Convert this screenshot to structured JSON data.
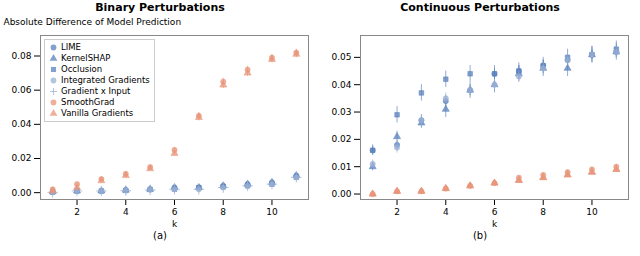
{
  "chart_data": [
    {
      "type": "scatter",
      "title": "Binary Perturbations",
      "x_label": "k",
      "y_label": "Absolute Difference of Model Prediction",
      "caption": "(a)",
      "x": [
        1,
        2,
        3,
        4,
        5,
        6,
        7,
        8,
        9,
        10,
        11
      ],
      "xlim": [
        0.5,
        11.5
      ],
      "xticks": [
        2,
        4,
        6,
        8,
        10
      ],
      "ylim": [
        -0.004,
        0.092
      ],
      "yticks": [
        {
          "value": 0.0,
          "label": "0.00"
        },
        0.02,
        0.04,
        0.06,
        0.08
      ],
      "legend": "upper left",
      "series": [
        {
          "name": "LIME",
          "color": "#5b82be",
          "marker": "circle",
          "values": [
            0.0005,
            0.001,
            0.001,
            0.0015,
            0.002,
            0.003,
            0.003,
            0.004,
            0.005,
            0.006,
            0.01
          ],
          "yerr": [
            0.0003,
            0.0003,
            0.0003,
            0.0003,
            0.0004,
            0.0004,
            0.0004,
            0.0005,
            0.0006,
            0.0007,
            0.001
          ]
        },
        {
          "name": "KernelSHAP",
          "color": "#5b82be",
          "marker": "triangle",
          "values": [
            0.0005,
            0.001,
            0.001,
            0.0015,
            0.002,
            0.003,
            0.003,
            0.004,
            0.005,
            0.006,
            0.01
          ],
          "yerr": [
            0.0003,
            0.0003,
            0.0003,
            0.0003,
            0.0004,
            0.0004,
            0.0004,
            0.0005,
            0.0006,
            0.0007,
            0.001
          ]
        },
        {
          "name": "Occlusion",
          "color": "#5b82be",
          "marker": "square",
          "values": [
            0.0004,
            0.001,
            0.001,
            0.0013,
            0.0018,
            0.002,
            0.003,
            0.0035,
            0.004,
            0.005,
            0.009
          ],
          "yerr": [
            0.0002,
            0.0002,
            0.0002,
            0.0002,
            0.0003,
            0.0003,
            0.0003,
            0.0004,
            0.0005,
            0.0006,
            0.0008
          ]
        },
        {
          "name": "Integrated Gradients",
          "color": "#9ab0d4",
          "marker": "circle",
          "values": [
            0.0003,
            0.001,
            0.001,
            0.0013,
            0.0018,
            0.002,
            0.002,
            0.003,
            0.004,
            0.005,
            0.009
          ],
          "yerr": [
            0.0002,
            0.0002,
            0.0002,
            0.0002,
            0.0003,
            0.0003,
            0.0003,
            0.0004,
            0.0005,
            0.0006,
            0.0008
          ]
        },
        {
          "name": "Gradient x Input",
          "color": "#9ab0d4",
          "marker": "plus",
          "values": [
            0.0002,
            0.001,
            0.001,
            0.0012,
            0.0016,
            0.002,
            0.002,
            0.003,
            0.004,
            0.005,
            0.009
          ],
          "yerr": [
            0.0002,
            0.0002,
            0.0002,
            0.0002,
            0.0002,
            0.0003,
            0.0003,
            0.0004,
            0.0005,
            0.0006,
            0.0008
          ]
        },
        {
          "name": "SmoothGrad",
          "color": "#e8967a",
          "marker": "circle",
          "values": [
            0.002,
            0.005,
            0.008,
            0.011,
            0.015,
            0.025,
            0.045,
            0.065,
            0.072,
            0.079,
            0.082
          ],
          "yerr": [
            0.0004,
            0.0007,
            0.0008,
            0.0009,
            0.001,
            0.0015,
            0.002,
            0.002,
            0.002,
            0.002,
            0.002
          ]
        },
        {
          "name": "Vanilla Gradients",
          "color": "#e8967a",
          "marker": "triangle",
          "values": [
            0.001,
            0.003,
            0.007,
            0.01,
            0.014,
            0.023,
            0.044,
            0.063,
            0.07,
            0.078,
            0.081
          ],
          "yerr": [
            0.0004,
            0.0007,
            0.0008,
            0.001,
            0.001,
            0.0015,
            0.002,
            0.002,
            0.002,
            0.002,
            0.002
          ]
        }
      ]
    },
    {
      "type": "scatter",
      "title": "Continuous Perturbations",
      "x_label": "k",
      "caption": "(b)",
      "x": [
        1,
        2,
        3,
        4,
        5,
        6,
        7,
        8,
        9,
        10,
        11
      ],
      "xlim": [
        0.5,
        11.5
      ],
      "xticks": [
        2,
        4,
        6,
        8,
        10
      ],
      "ylim": [
        -0.002,
        0.058
      ],
      "yticks": [
        {
          "value": 0.0,
          "label": "0.00"
        },
        0.01,
        0.02,
        0.03,
        0.04,
        0.05
      ],
      "series": [
        {
          "name": "LIME",
          "color": "#5b82be",
          "marker": "circle",
          "values": [
            0.016,
            0.018,
            0.027,
            0.034,
            0.038,
            0.044,
            0.045,
            0.047,
            0.049,
            0.051,
            0.052
          ],
          "yerr": [
            0.0015,
            0.0015,
            0.002,
            0.002,
            0.002,
            0.002,
            0.002,
            0.002,
            0.002,
            0.002,
            0.002
          ]
        },
        {
          "name": "KernelSHAP",
          "color": "#5b82be",
          "marker": "triangle",
          "values": [
            0.01,
            0.021,
            0.026,
            0.031,
            0.038,
            0.04,
            0.044,
            0.046,
            0.046,
            0.051,
            0.052
          ],
          "yerr": [
            0.0015,
            0.002,
            0.002,
            0.003,
            0.003,
            0.003,
            0.003,
            0.003,
            0.003,
            0.003,
            0.003
          ]
        },
        {
          "name": "Occlusion",
          "color": "#5b82be",
          "marker": "square",
          "values": [
            0.016,
            0.029,
            0.037,
            0.042,
            0.044,
            0.044,
            0.045,
            0.047,
            0.05,
            0.051,
            0.053
          ],
          "yerr": [
            0.002,
            0.003,
            0.003,
            0.003,
            0.003,
            0.003,
            0.003,
            0.003,
            0.003,
            0.003,
            0.003
          ]
        },
        {
          "name": "Integrated Gradients",
          "color": "#9ab0d4",
          "marker": "circle",
          "values": [
            0.011,
            0.017,
            0.027,
            0.035,
            0.038,
            0.04,
            0.043,
            0.046,
            0.049,
            0.051,
            0.052
          ],
          "yerr": [
            0.0015,
            0.002,
            0.002,
            0.002,
            0.002,
            0.002,
            0.002,
            0.002,
            0.002,
            0.002,
            0.002
          ]
        },
        {
          "name": "Gradient x Input",
          "color": "#e8967a",
          "marker": "triangle",
          "values": [
            0.0,
            0.001,
            0.001,
            0.002,
            0.003,
            0.004,
            0.005,
            0.006,
            0.007,
            0.008,
            0.009
          ],
          "yerr": [
            0.0002,
            0.0003,
            0.0003,
            0.0004,
            0.0004,
            0.0004,
            0.0005,
            0.0005,
            0.0006,
            0.0007,
            0.0008
          ]
        },
        {
          "name": "SmoothGrad",
          "color": "#e8967a",
          "marker": "circle",
          "values": [
            0.0,
            0.001,
            0.001,
            0.002,
            0.003,
            0.004,
            0.006,
            0.007,
            0.008,
            0.009,
            0.01
          ],
          "yerr": [
            0.0002,
            0.0003,
            0.0003,
            0.0004,
            0.0004,
            0.0004,
            0.0005,
            0.0005,
            0.0006,
            0.0007,
            0.0008
          ]
        },
        {
          "name": "Vanilla Gradients",
          "color": "#e8967a",
          "marker": "triangle",
          "values": [
            0.0,
            0.001,
            0.001,
            0.002,
            0.003,
            0.004,
            0.005,
            0.006,
            0.007,
            0.008,
            0.009
          ],
          "yerr": [
            0.0002,
            0.0003,
            0.0003,
            0.0004,
            0.0004,
            0.0004,
            0.0005,
            0.0005,
            0.0006,
            0.0007,
            0.0008
          ]
        }
      ]
    }
  ]
}
